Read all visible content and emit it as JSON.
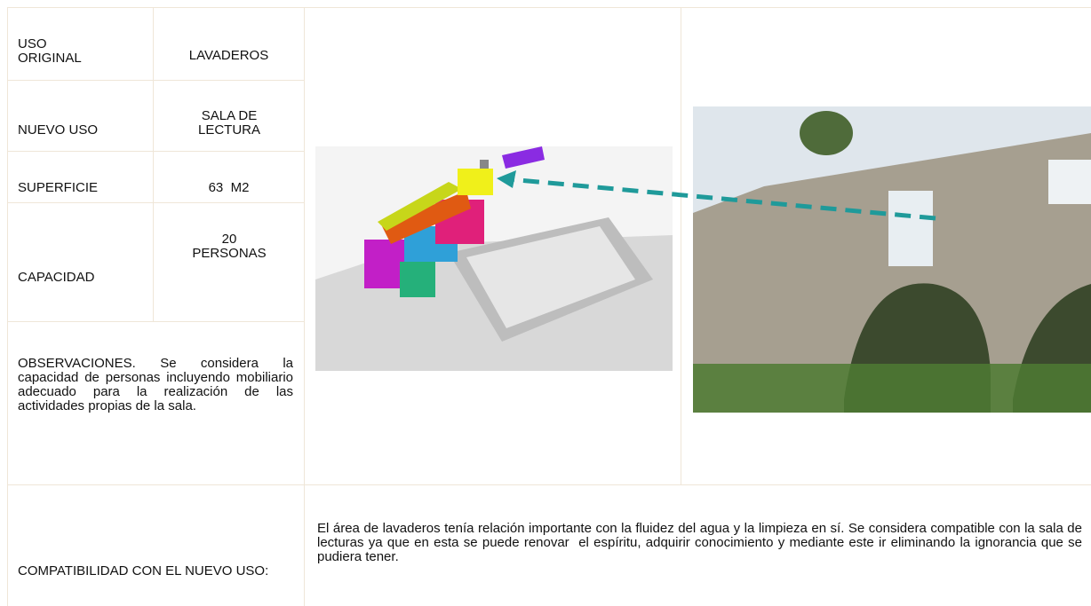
{
  "table": {
    "rows": [
      {
        "label": "USO ORIGINAL",
        "value": "LAVADEROS"
      },
      {
        "label": "NUEVO USO",
        "value": "SALA DE LECTURA"
      },
      {
        "label": "SUPERFICIE",
        "value": "63  M2"
      },
      {
        "label": "CAPACIDAD",
        "value": "20 PERSONAS"
      }
    ],
    "observaciones": "OBSERVACIONES. Se considera la capacidad de personas incluyendo mobiliario adecuado para la realización de las actividades propias de la sala.",
    "compatibilidad": {
      "label": "COMPATIBILIDAD CON EL NUEVO USO:",
      "text": "El área de lavaderos tenía relación importante con la fluidez del agua y la limpieza en sí. Se considera compatible con la sala de lecturas ya que en esta se puede renovar  el espíritu, adquirir conocimiento y mediante este ir eliminando la ignorancia que se pudiera tener."
    }
  }
}
